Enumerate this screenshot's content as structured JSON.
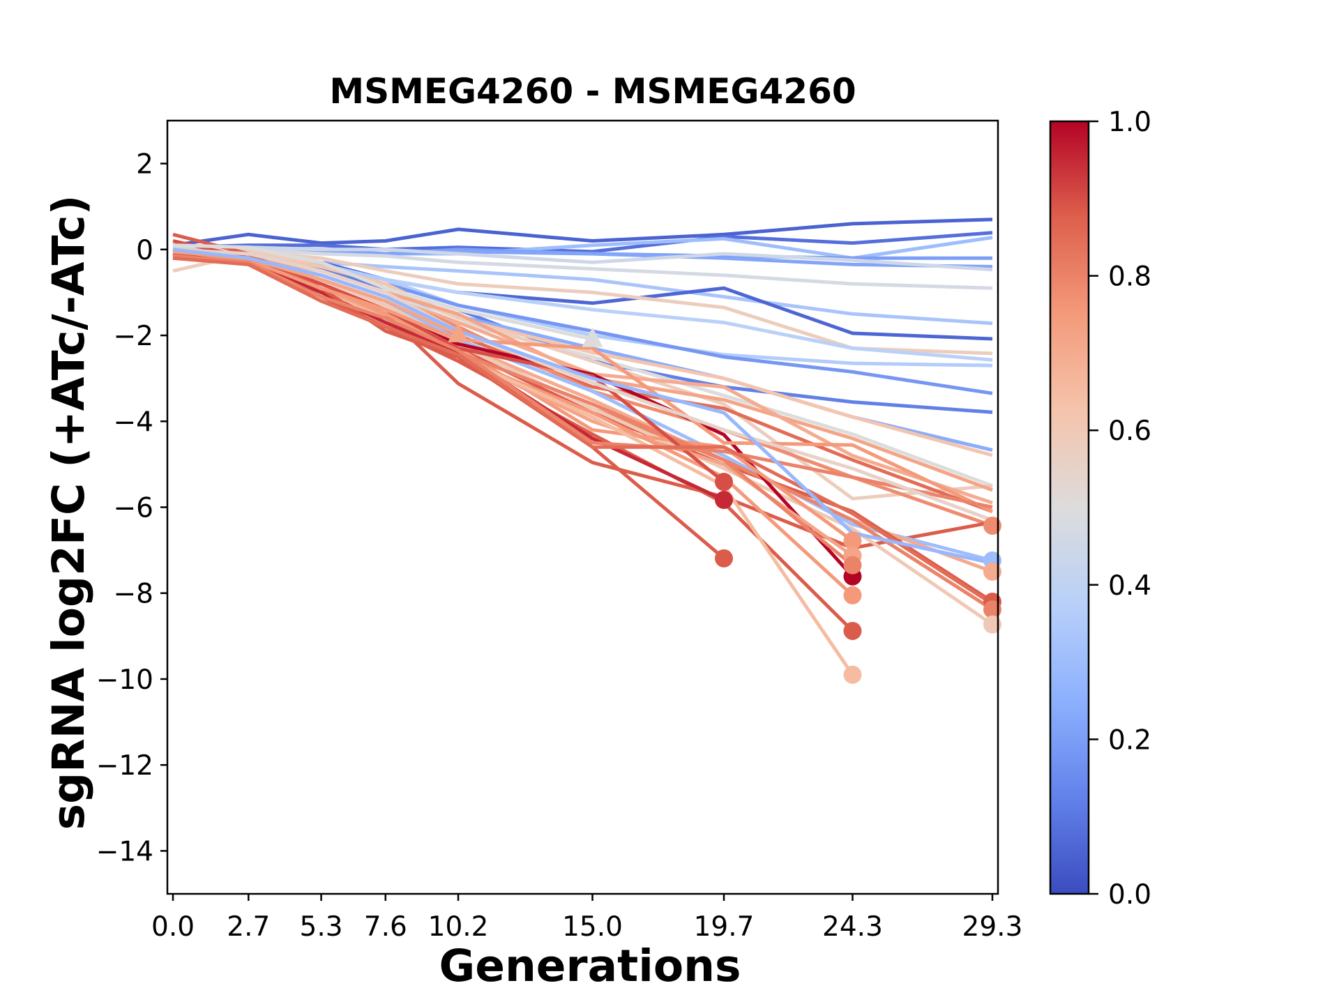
{
  "chart_data": {
    "type": "line",
    "title": "MSMEG4260 - MSMEG4260",
    "xlabel": "Generations",
    "ylabel": "sgRNA log2FC (+ATc/-ATc)",
    "x": [
      0.0,
      2.7,
      5.3,
      7.6,
      10.2,
      15.0,
      19.7,
      24.3,
      29.3
    ],
    "x_tick_labels": [
      "0.0",
      "2.7",
      "5.3",
      "7.6",
      "10.2",
      "15.0",
      "19.7",
      "24.3",
      "29.3"
    ],
    "xlim": [
      -0.2,
      29.5
    ],
    "ylim": [
      -15,
      3
    ],
    "y_ticks": [
      2,
      0,
      -2,
      -4,
      -6,
      -8,
      -10,
      -12,
      -14
    ],
    "y_tick_labels": [
      "2",
      "0",
      "−2",
      "−4",
      "−6",
      "−8",
      "−10",
      "−12",
      "−14"
    ],
    "grid": false,
    "colormap": "coolwarm",
    "colorbar": {
      "range": [
        0.0,
        1.0
      ],
      "ticks": [
        0.0,
        0.2,
        0.4,
        0.6,
        0.8,
        1.0
      ],
      "tick_labels": [
        "0.0",
        "0.2",
        "0.4",
        "0.6",
        "0.8",
        "1.0"
      ],
      "placement": "right",
      "colors": [
        "#3b4cc0",
        "#6282ea",
        "#8db0fe",
        "#b8d0f9",
        "#dddcdc",
        "#f5c4ac",
        "#f49a7b",
        "#de604d",
        "#b40426"
      ]
    },
    "end_markers": {
      "circle": "series ending before final timepoint or at final point with strong depletion",
      "triangle": "flagged intermediate point"
    },
    "series": [
      {
        "c": 0.05,
        "values": [
          0.1,
          0.35,
          0.15,
          0.2,
          0.47,
          0.2,
          0.35,
          0.6,
          0.7
        ]
      },
      {
        "c": 0.08,
        "values": [
          0.05,
          0.1,
          0.1,
          0.0,
          0.05,
          -0.05,
          0.3,
          0.15,
          0.39
        ]
      },
      {
        "c": 0.3,
        "values": [
          0.1,
          0.05,
          0.0,
          -0.1,
          -0.1,
          0.1,
          0.25,
          -0.2,
          0.28
        ]
      },
      {
        "c": 0.2,
        "values": [
          0.0,
          0.0,
          0.0,
          -0.1,
          0.0,
          -0.1,
          -0.15,
          -0.2,
          -0.2
        ]
      },
      {
        "c": 0.22,
        "values": [
          0.0,
          -0.05,
          -0.05,
          -0.1,
          -0.05,
          -0.1,
          -0.2,
          -0.35,
          -0.4
        ]
      },
      {
        "c": 0.45,
        "values": [
          0.05,
          0.05,
          0.0,
          0.0,
          -0.1,
          -0.3,
          -0.1,
          -0.25,
          -0.47
        ]
      },
      {
        "c": 0.47,
        "values": [
          0.0,
          0.0,
          -0.1,
          -0.15,
          -0.3,
          -0.45,
          -0.6,
          -0.8,
          -0.9
        ]
      },
      {
        "c": 0.33,
        "values": [
          0.0,
          -0.1,
          -0.3,
          -0.4,
          -0.5,
          -0.7,
          -1.1,
          -1.5,
          -1.72
        ]
      },
      {
        "c": 0.06,
        "values": [
          0.0,
          -0.1,
          -0.3,
          -0.7,
          -1.0,
          -1.25,
          -0.9,
          -1.95,
          -2.08
        ]
      },
      {
        "c": 0.58,
        "values": [
          0.0,
          -0.05,
          -0.2,
          -0.5,
          -0.8,
          -1.0,
          -1.35,
          -2.3,
          -2.42
        ]
      },
      {
        "c": 0.38,
        "values": [
          0.0,
          -0.1,
          -0.4,
          -0.7,
          -1.0,
          -1.4,
          -1.7,
          -2.3,
          -2.57
        ]
      },
      {
        "c": 0.36,
        "values": [
          0.0,
          -0.1,
          -0.35,
          -0.7,
          -1.3,
          -2.0,
          -2.45,
          -2.65,
          -2.7
        ]
      },
      {
        "c": 0.18,
        "values": [
          0.0,
          -0.1,
          -0.4,
          -0.8,
          -1.3,
          -1.9,
          -2.5,
          -2.85,
          -3.35
        ]
      },
      {
        "c": 0.12,
        "values": [
          0.0,
          -0.15,
          -0.45,
          -0.9,
          -1.4,
          -2.6,
          -3.2,
          -3.55,
          -3.79
        ]
      },
      {
        "c": 0.24,
        "values": [
          0.0,
          -0.15,
          -0.5,
          -1.0,
          -1.55,
          -2.3,
          -3.0,
          -3.9,
          -4.67
        ]
      },
      {
        "c": 0.62,
        "values": [
          0.0,
          -0.1,
          -0.4,
          -0.8,
          -1.6,
          -2.4,
          -3.0,
          -3.9,
          -4.79
        ]
      },
      {
        "c": 0.5,
        "values": [
          0.0,
          -0.15,
          -0.5,
          -1.0,
          -1.7,
          -2.5,
          -3.4,
          -4.3,
          -5.5
        ]
      },
      {
        "c": 0.58,
        "values": [
          -0.5,
          -0.1,
          -0.3,
          -0.9,
          -1.6,
          -2.6,
          -3.6,
          -5.8,
          -5.5
        ]
      },
      {
        "c": 0.72,
        "values": [
          0.0,
          -0.15,
          -0.5,
          -1.0,
          -1.5,
          -3.0,
          -3.5,
          -4.4,
          -5.6
        ]
      },
      {
        "c": 0.7,
        "values": [
          -0.1,
          -0.2,
          -0.6,
          -1.1,
          -1.7,
          -2.9,
          -3.2,
          -4.8,
          -5.9
        ]
      },
      {
        "c": 0.85,
        "values": [
          0.0,
          -0.2,
          -0.7,
          -1.2,
          -2.0,
          -3.2,
          -3.7,
          -4.9,
          -6.1
        ]
      },
      {
        "c": 0.78,
        "values": [
          0.0,
          -0.2,
          -0.6,
          -1.1,
          -1.8,
          -3.3,
          -4.2,
          -5.3,
          -6.43
        ],
        "marker": "circle"
      },
      {
        "c": 0.88,
        "values": [
          0.0,
          -0.3,
          -0.9,
          -1.5,
          -3.12,
          -4.96,
          -5.76,
          -6.95,
          -6.35
        ]
      },
      {
        "c": 0.3,
        "values": [
          0.0,
          -0.2,
          -0.7,
          -1.2,
          -2.1,
          -3.3,
          -4.8,
          -6.4,
          -7.24
        ],
        "marker": "circle"
      },
      {
        "c": 0.7,
        "values": [
          0.0,
          -0.2,
          -0.7,
          -1.3,
          -2.2,
          -3.5,
          -4.9,
          -6.3,
          -7.5
        ],
        "marker": "circle"
      },
      {
        "c": 0.88,
        "values": [
          -0.1,
          -0.3,
          -0.9,
          -1.4,
          -2.3,
          -3.8,
          -5.0,
          -6.1,
          -8.2
        ],
        "marker": "circle"
      },
      {
        "c": 0.8,
        "values": [
          -0.1,
          -0.25,
          -0.8,
          -1.4,
          -2.2,
          -3.7,
          -4.9,
          -6.3,
          -8.38
        ],
        "marker": "circle"
      },
      {
        "c": 0.6,
        "values": [
          0.0,
          -0.2,
          -0.7,
          -1.3,
          -2.2,
          -3.7,
          -5.1,
          -6.5,
          -8.73
        ],
        "marker": "circle"
      },
      {
        "c": 1.0,
        "values": [
          -0.1,
          -0.3,
          -0.9,
          -1.5,
          -2.2,
          -2.91,
          -4.31,
          -7.61
        ],
        "marker": "circle"
      },
      {
        "c": 0.75,
        "values": [
          0.0,
          -0.2,
          -0.9,
          -1.5,
          -2.3,
          -4.2,
          -4.6,
          -6.78
        ],
        "marker": "circle"
      },
      {
        "c": 0.72,
        "values": [
          -0.1,
          -0.3,
          -0.9,
          -1.6,
          -2.5,
          -4.0,
          -5.0,
          -7.13
        ],
        "marker": "circle"
      },
      {
        "c": 0.8,
        "values": [
          -0.2,
          -0.3,
          -1.0,
          -1.7,
          -2.4,
          -3.6,
          -4.9,
          -7.35
        ],
        "marker": "circle"
      },
      {
        "c": 0.75,
        "values": [
          0.0,
          -0.3,
          -1.0,
          -1.7,
          -2.5,
          -3.8,
          -5.3,
          -8.05
        ],
        "marker": "circle"
      },
      {
        "c": 0.88,
        "values": [
          -0.1,
          -0.35,
          -1.1,
          -1.8,
          -2.6,
          -4.3,
          -5.9,
          -8.88
        ],
        "marker": "circle"
      },
      {
        "c": 0.65,
        "values": [
          -0.2,
          -0.3,
          -1.0,
          -1.6,
          -2.5,
          -3.9,
          -5.5,
          -9.9
        ],
        "marker": "circle"
      },
      {
        "c": 0.9,
        "values": [
          0.2,
          -0.2,
          -0.8,
          -1.4,
          -2.3,
          -2.95,
          -5.41
        ],
        "marker": "circle"
      },
      {
        "c": 0.95,
        "values": [
          -0.2,
          -0.3,
          -1.0,
          -1.7,
          -2.4,
          -4.4,
          -5.83
        ],
        "marker": "circle"
      },
      {
        "c": 0.88,
        "values": [
          0.35,
          -0.1,
          -0.9,
          -1.9,
          -2.5,
          -4.6,
          -7.19
        ],
        "marker": "circle"
      },
      {
        "c": 0.72,
        "values": [
          -0.05,
          -0.2,
          -0.7,
          -1.2,
          -1.98
        ],
        "marker": "triangle"
      },
      {
        "c": 0.5,
        "values": [
          0.1,
          0.05,
          -0.3,
          -0.9,
          -1.4,
          -2.09
        ],
        "marker": "triangle"
      },
      {
        "c": 0.75,
        "values": [
          0.0,
          -0.25,
          -0.9,
          -1.4,
          -2.1,
          -2.3,
          -4.5,
          -4.55,
          -6.1
        ]
      },
      {
        "c": 0.8,
        "values": [
          -0.15,
          -0.3,
          -1.1,
          -1.6,
          -2.35,
          -4.5,
          -4.7,
          -5.3,
          -6.0
        ]
      },
      {
        "c": 0.85,
        "values": [
          -0.2,
          -0.35,
          -1.2,
          -1.8,
          -2.45,
          -4.6,
          -4.6,
          -6.15,
          -8.25
        ]
      },
      {
        "c": 0.55,
        "values": [
          0.0,
          -0.1,
          -0.5,
          -1.0,
          -1.9,
          -3.1,
          -4.2,
          -5.1,
          -6.3
        ]
      },
      {
        "c": 0.28,
        "values": [
          0.0,
          -0.2,
          -0.6,
          -1.1,
          -1.9,
          -3.0,
          -3.8,
          -6.6,
          -7.3
        ]
      }
    ]
  }
}
